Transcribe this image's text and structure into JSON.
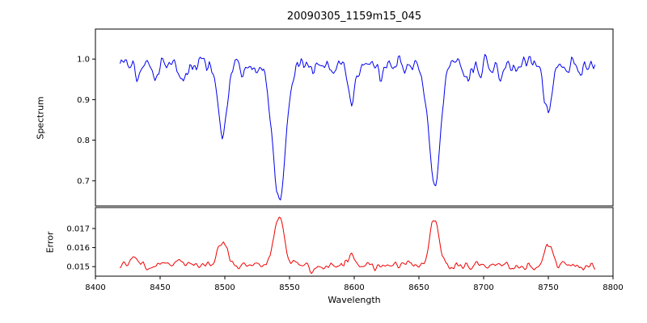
{
  "title": "20090305_1159m15_045",
  "chart_data": [
    {
      "type": "line",
      "name": "spectrum",
      "title": "20090305_1159m15_045",
      "xlabel": "",
      "ylabel": "Spectrum",
      "color": "#0000ee",
      "xlim": [
        8400,
        8800
      ],
      "ylim": [
        0.638,
        1.074
      ],
      "x_start": 8419,
      "x_end": 8786,
      "x_step": 1.0,
      "yticks": [
        0.7,
        0.8,
        0.9,
        1.0
      ],
      "ytick_labels": [
        "0.7",
        "0.8",
        "0.9",
        "1.0"
      ],
      "grid": false,
      "continuum": 0.985,
      "noise_sigma": 0.012,
      "noise_seed": 20090305,
      "absorption_features": [
        {
          "center": 8433.0,
          "depth": 0.03,
          "sigma": 1.5
        },
        {
          "center": 8446.0,
          "depth": 0.035,
          "sigma": 2.0
        },
        {
          "center": 8468.0,
          "depth": 0.04,
          "sigma": 2.0
        },
        {
          "center": 8498.0,
          "depth": 0.175,
          "sigma": 3.5
        },
        {
          "center": 8514.0,
          "depth": 0.03,
          "sigma": 1.5
        },
        {
          "center": 8542.0,
          "depth": 0.335,
          "sigma": 5.0
        },
        {
          "center": 8583.0,
          "depth": 0.025,
          "sigma": 1.5
        },
        {
          "center": 8598.0,
          "depth": 0.1,
          "sigma": 2.5
        },
        {
          "center": 8621.0,
          "depth": 0.03,
          "sigma": 1.8
        },
        {
          "center": 8662.0,
          "depth": 0.29,
          "sigma": 4.5
        },
        {
          "center": 8688.0,
          "depth": 0.025,
          "sigma": 1.5
        },
        {
          "center": 8713.0,
          "depth": 0.03,
          "sigma": 1.8
        },
        {
          "center": 8750.0,
          "depth": 0.115,
          "sigma": 3.0
        },
        {
          "center": 8775.0,
          "depth": 0.03,
          "sigma": 1.5
        }
      ]
    },
    {
      "type": "line",
      "name": "error",
      "title": "",
      "xlabel": "Wavelength",
      "ylabel": "Error",
      "color": "#ee0000",
      "xlim": [
        8400,
        8800
      ],
      "ylim": [
        0.0145,
        0.0181
      ],
      "x_start": 8419,
      "x_end": 8786,
      "x_step": 1.0,
      "xticks": [
        8400,
        8450,
        8500,
        8550,
        8600,
        8650,
        8700,
        8750,
        8800
      ],
      "xtick_labels": [
        "8400",
        "8450",
        "8500",
        "8550",
        "8600",
        "8650",
        "8700",
        "8750",
        "8800"
      ],
      "yticks": [
        0.015,
        0.016,
        0.017
      ],
      "ytick_labels": [
        "0.015",
        "0.016",
        "0.017"
      ],
      "grid": false,
      "baseline": 0.01505,
      "noise_sigma": 0.00012,
      "noise_seed": 1159,
      "emission_features": [
        {
          "center": 8430.0,
          "height": 0.0004,
          "sigma": 2.0
        },
        {
          "center": 8465.0,
          "height": 0.0004,
          "sigma": 2.5
        },
        {
          "center": 8498.0,
          "height": 0.0012,
          "sigma": 3.5
        },
        {
          "center": 8542.0,
          "height": 0.0026,
          "sigma": 4.0
        },
        {
          "center": 8598.0,
          "height": 0.0005,
          "sigma": 2.5
        },
        {
          "center": 8662.0,
          "height": 0.0025,
          "sigma": 3.5
        },
        {
          "center": 8750.0,
          "height": 0.0012,
          "sigma": 3.0
        }
      ]
    }
  ]
}
